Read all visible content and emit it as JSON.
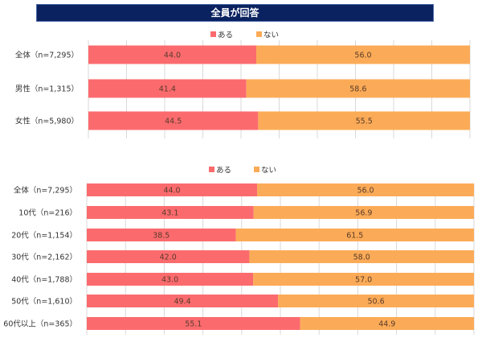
{
  "title": "全員が回答",
  "colors": {
    "yes": "#fb6b6e",
    "no": "#fbab57",
    "grid": "#d9d9d9",
    "label": "#333333",
    "title_bg": "#0b2260"
  },
  "chart_data": [
    {
      "type": "bar",
      "orientation": "horizontal",
      "stacked": true,
      "legend": [
        "ある",
        "ない"
      ],
      "legend_position": "top",
      "xlim": [
        0,
        100
      ],
      "grid": true,
      "categories": [
        "全体（n=7,295）",
        "男性（n=1,315）",
        "女性（n=5,980）"
      ],
      "series": [
        {
          "name": "ある",
          "values": [
            44.0,
            41.4,
            44.5
          ],
          "labels": [
            "44.0",
            "41.4",
            "44.5"
          ]
        },
        {
          "name": "ない",
          "values": [
            56.0,
            58.6,
            55.5
          ],
          "labels": [
            "56.0",
            "58.6",
            "55.5"
          ]
        }
      ]
    },
    {
      "type": "bar",
      "orientation": "horizontal",
      "stacked": true,
      "legend": [
        "ある",
        "ない"
      ],
      "legend_position": "top",
      "xlim": [
        0,
        100
      ],
      "grid": true,
      "categories": [
        "全体（n=7,295）",
        "10代（n=216）",
        "20代（n=1,154）",
        "30代（n=2,162）",
        "40代（n=1,788）",
        "50代（n=1,610）",
        "60代以上（n=365）"
      ],
      "series": [
        {
          "name": "ある",
          "values": [
            44.0,
            43.1,
            38.5,
            42.0,
            43.0,
            49.4,
            55.1
          ],
          "labels": [
            "44.0",
            "43.1",
            "38.5",
            "42.0",
            "43.0",
            "49.4",
            "55.1"
          ]
        },
        {
          "name": "ない",
          "values": [
            56.0,
            56.9,
            61.5,
            58.0,
            57.0,
            50.6,
            44.9
          ],
          "labels": [
            "56.0",
            "56.9",
            "61.5",
            "58.0",
            "57.0",
            "50.6",
            "44.9"
          ]
        }
      ]
    }
  ]
}
